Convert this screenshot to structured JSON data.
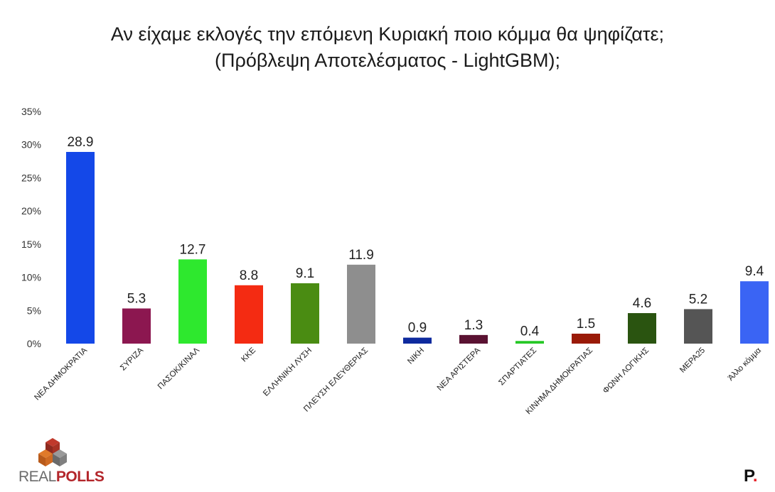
{
  "title_line1": "Αν είχαμε εκλογές την επόμενη Κυριακή ποιο κόμμα θα ψηφίζατε;",
  "title_line2": "(Πρόβλεψη Αποτελέσματος - LightGBM);",
  "logo_real": "REAL",
  "logo_polls": "POLLS",
  "brand_letter": "P",
  "brand_dot": ".",
  "chart_data": {
    "type": "bar",
    "ylim": [
      0,
      35
    ],
    "yticks": [
      0,
      5,
      10,
      15,
      20,
      25,
      30,
      35
    ],
    "ytick_labels": [
      "0%",
      "5%",
      "10%",
      "15%",
      "20%",
      "25%",
      "30%",
      "35%"
    ],
    "grid": false,
    "categories": [
      "ΝΕΑ ΔΗΜΟΚΡΑΤΙΑ",
      "ΣΥΡΙΖΑ",
      "ΠΑΣΟΚ/ΚΙΝΑΛ",
      "ΚΚΕ",
      "ΕΛΛΗΝΙΚΗ ΛΥΣΗ",
      "ΠΛΕΥΣΗ ΕΛΕΥΘΕΡΙΑΣ",
      "ΝΙΚΗ",
      "ΝΕΑ ΑΡΙΣΤΕΡΑ",
      "ΣΠΑΡΤΙΑΤΕΣ",
      "ΚΙΝΗΜΑ ΔΗΜΟΚΡΑΤΙΑΣ",
      "ΦΩΝΗ ΛΟΓΙΚΗΣ",
      "ΜΕΡΑ25",
      "Άλλο κόμμα"
    ],
    "values": [
      28.9,
      5.3,
      12.7,
      8.8,
      9.1,
      11.9,
      0.9,
      1.3,
      0.4,
      1.5,
      4.6,
      5.2,
      9.4
    ],
    "value_labels": [
      "28.9",
      "5.3",
      "12.7",
      "8.8",
      "9.1",
      "11.9",
      "0.9",
      "1.3",
      "0.4",
      "1.5",
      "4.6",
      "5.2",
      "9.4"
    ],
    "colors": [
      "#1448e8",
      "#8c1750",
      "#2ee82e",
      "#f42b12",
      "#4a8c12",
      "#8e8e8e",
      "#0e2a9e",
      "#5a1232",
      "#26c826",
      "#9a1a08",
      "#2a5410",
      "#555555",
      "#3a64f4"
    ]
  }
}
